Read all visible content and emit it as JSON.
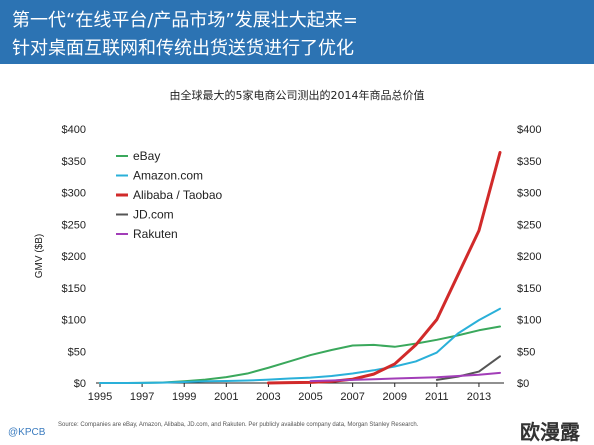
{
  "header": {
    "line1": "第一代“在线平台/产品市场”发展壮大起来=",
    "line2": "针对桌面互联网和传统出货送货进行了优化"
  },
  "footer": {
    "logo": "@KPCB",
    "source": "Source: Companies are eBay, Amazon, Alibaba, JD.com, and Rakuten. Per publicly available company data, Morgan Stanley Research.",
    "watermark": "欧漫露"
  },
  "chart_data": {
    "type": "line",
    "title": "由全球最大的5家电商公司测出的2014年商品总价值",
    "ylabel": "GMV ($B)",
    "xlabel": "",
    "xlim": [
      1995,
      2014
    ],
    "ylim": [
      0,
      400
    ],
    "x_ticks": [
      "1995",
      "1997",
      "1999",
      "2001",
      "2003",
      "2005",
      "2007",
      "2009",
      "2011",
      "2013"
    ],
    "y_ticks": [
      "$0",
      "$50",
      "$100",
      "$150",
      "$200",
      "$250",
      "$300",
      "$350",
      "$400"
    ],
    "legend_position": "top-left",
    "series": [
      {
        "name": "eBay",
        "color": "#3aa85c",
        "x": [
          1995,
          1996,
          1997,
          1998,
          1999,
          2000,
          2001,
          2002,
          2003,
          2004,
          2005,
          2006,
          2007,
          2008,
          2009,
          2010,
          2011,
          2012,
          2013,
          2014
        ],
        "y": [
          0,
          0,
          0.1,
          0.7,
          2.8,
          5.4,
          9.3,
          14.9,
          24,
          34,
          44,
          52,
          59,
          60,
          57,
          62,
          68,
          75,
          83,
          89
        ]
      },
      {
        "name": "Amazon.com",
        "color": "#2ab0d9",
        "x": [
          1995,
          1996,
          1997,
          1998,
          1999,
          2000,
          2001,
          2002,
          2003,
          2004,
          2005,
          2006,
          2007,
          2008,
          2009,
          2010,
          2011,
          2012,
          2013,
          2014
        ],
        "y": [
          0,
          0,
          0.1,
          0.6,
          1.6,
          2.8,
          3.1,
          3.9,
          5.3,
          7,
          8.5,
          11,
          15,
          20,
          26,
          34,
          48,
          78,
          99,
          117
        ]
      },
      {
        "name": "Alibaba / Taobao",
        "color": "#d12a2a",
        "x": [
          2003,
          2004,
          2005,
          2006,
          2007,
          2008,
          2009,
          2010,
          2011,
          2012,
          2013,
          2014
        ],
        "y": [
          0,
          0.5,
          1,
          2.5,
          6,
          14,
          30,
          60,
          100,
          170,
          240,
          363
        ]
      },
      {
        "name": "JD.com",
        "color": "#555555",
        "x": [
          2011,
          2012,
          2013,
          2014
        ],
        "y": [
          5,
          10,
          18,
          42
        ]
      },
      {
        "name": "Rakuten",
        "color": "#a23db8",
        "x": [
          2005,
          2006,
          2007,
          2008,
          2009,
          2010,
          2011,
          2012,
          2013,
          2014
        ],
        "y": [
          3,
          4,
          5,
          6,
          7,
          8,
          9,
          11,
          13,
          16
        ]
      }
    ]
  }
}
